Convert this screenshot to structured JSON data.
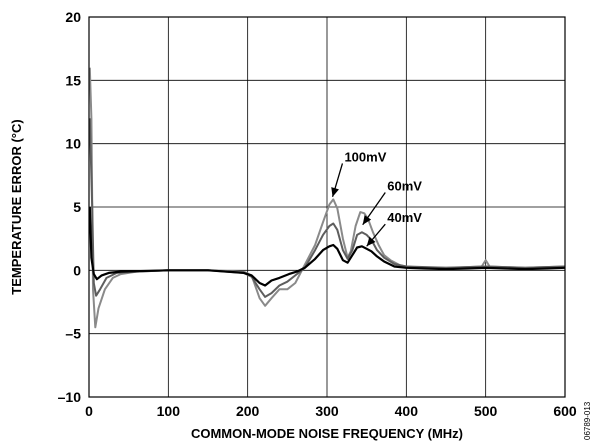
{
  "chart_data": {
    "type": "line",
    "title": "",
    "xlabel": "COMMON-MODE NOISE FREQUENCY (MHz)",
    "ylabel": "TEMPERATURE ERROR (°C)",
    "xlim": [
      0,
      600
    ],
    "ylim": [
      -10,
      20
    ],
    "x_ticks": [
      0,
      100,
      200,
      300,
      400,
      500,
      600
    ],
    "x_tick_labels": [
      "0",
      "100",
      "200",
      "300",
      "400",
      "500",
      "600"
    ],
    "y_ticks": [
      -10,
      -5,
      0,
      5,
      10,
      15,
      20
    ],
    "y_tick_labels": [
      "–10",
      "–5",
      "0",
      "5",
      "10",
      "15",
      "20"
    ],
    "grid": true,
    "figure_code": "06789-013",
    "series": [
      {
        "name": "100mV",
        "color": "#8a8a8a",
        "points": [
          [
            1,
            16
          ],
          [
            3,
            12
          ],
          [
            5,
            -1.5
          ],
          [
            8,
            -4.5
          ],
          [
            12,
            -3
          ],
          [
            20,
            -1.5
          ],
          [
            30,
            -0.6
          ],
          [
            40,
            -0.3
          ],
          [
            60,
            -0.1
          ],
          [
            100,
            0
          ],
          [
            150,
            0
          ],
          [
            195,
            -0.1
          ],
          [
            205,
            -0.4
          ],
          [
            215,
            -2.2
          ],
          [
            222,
            -2.8
          ],
          [
            230,
            -2.2
          ],
          [
            240,
            -1.5
          ],
          [
            250,
            -1.5
          ],
          [
            260,
            -1.0
          ],
          [
            270,
            0.2
          ],
          [
            285,
            2.0
          ],
          [
            295,
            3.8
          ],
          [
            303,
            5.2
          ],
          [
            308,
            5.6
          ],
          [
            313,
            4.9
          ],
          [
            320,
            2.5
          ],
          [
            326,
            1.0
          ],
          [
            330,
            1.5
          ],
          [
            336,
            3.5
          ],
          [
            342,
            4.6
          ],
          [
            347,
            4.5
          ],
          [
            352,
            4.0
          ],
          [
            358,
            3.0
          ],
          [
            365,
            2.0
          ],
          [
            372,
            1.2
          ],
          [
            380,
            0.8
          ],
          [
            392,
            0.4
          ],
          [
            400,
            0.3
          ],
          [
            420,
            0.2
          ],
          [
            460,
            0.2
          ],
          [
            495,
            0.3
          ],
          [
            500,
            0.8
          ],
          [
            505,
            0.3
          ],
          [
            550,
            0.2
          ],
          [
            600,
            0.3
          ]
        ]
      },
      {
        "name": "60mV",
        "color": "#5e5e5e",
        "points": [
          [
            1,
            12
          ],
          [
            4,
            5
          ],
          [
            6,
            -1
          ],
          [
            9,
            -2
          ],
          [
            14,
            -1.5
          ],
          [
            22,
            -0.6
          ],
          [
            35,
            -0.2
          ],
          [
            60,
            -0.1
          ],
          [
            100,
            0
          ],
          [
            150,
            0
          ],
          [
            195,
            -0.2
          ],
          [
            205,
            -0.5
          ],
          [
            215,
            -1.5
          ],
          [
            222,
            -2.1
          ],
          [
            230,
            -1.8
          ],
          [
            240,
            -1.2
          ],
          [
            250,
            -0.9
          ],
          [
            262,
            -0.3
          ],
          [
            272,
            0.2
          ],
          [
            285,
            1.6
          ],
          [
            295,
            2.8
          ],
          [
            303,
            3.5
          ],
          [
            308,
            3.7
          ],
          [
            313,
            3.2
          ],
          [
            320,
            1.6
          ],
          [
            326,
            0.9
          ],
          [
            332,
            1.6
          ],
          [
            338,
            2.8
          ],
          [
            344,
            3.0
          ],
          [
            350,
            2.8
          ],
          [
            356,
            2.4
          ],
          [
            363,
            1.6
          ],
          [
            372,
            1.0
          ],
          [
            385,
            0.5
          ],
          [
            400,
            0.3
          ],
          [
            450,
            0.2
          ],
          [
            500,
            0.3
          ],
          [
            550,
            0.2
          ],
          [
            600,
            0.3
          ]
        ]
      },
      {
        "name": "40mV",
        "color": "#000000",
        "points": [
          [
            1,
            5
          ],
          [
            3,
            1
          ],
          [
            6,
            -0.3
          ],
          [
            10,
            -0.7
          ],
          [
            16,
            -0.4
          ],
          [
            25,
            -0.2
          ],
          [
            40,
            -0.1
          ],
          [
            100,
            0
          ],
          [
            150,
            0
          ],
          [
            195,
            -0.2
          ],
          [
            205,
            -0.4
          ],
          [
            215,
            -1.0
          ],
          [
            222,
            -1.2
          ],
          [
            230,
            -0.8
          ],
          [
            240,
            -0.6
          ],
          [
            252,
            -0.3
          ],
          [
            262,
            -0.1
          ],
          [
            272,
            0.2
          ],
          [
            285,
            0.9
          ],
          [
            295,
            1.6
          ],
          [
            303,
            1.9
          ],
          [
            308,
            2.0
          ],
          [
            313,
            1.7
          ],
          [
            320,
            0.8
          ],
          [
            326,
            0.6
          ],
          [
            332,
            1.2
          ],
          [
            338,
            1.8
          ],
          [
            344,
            1.9
          ],
          [
            350,
            1.7
          ],
          [
            356,
            1.5
          ],
          [
            363,
            1.1
          ],
          [
            372,
            0.7
          ],
          [
            385,
            0.3
          ],
          [
            400,
            0.2
          ],
          [
            450,
            0.1
          ],
          [
            500,
            0.2
          ],
          [
            550,
            0.1
          ],
          [
            600,
            0.2
          ]
        ]
      }
    ],
    "annotations": [
      {
        "text": "100mV",
        "x": 322,
        "y": 8.6,
        "arrow_to": [
          307,
          5.8
        ]
      },
      {
        "text": "60mV",
        "x": 376,
        "y": 6.3,
        "arrow_to": [
          345,
          3.6
        ]
      },
      {
        "text": "40mV",
        "x": 376,
        "y": 3.8,
        "arrow_to": [
          350,
          1.9
        ]
      }
    ]
  }
}
